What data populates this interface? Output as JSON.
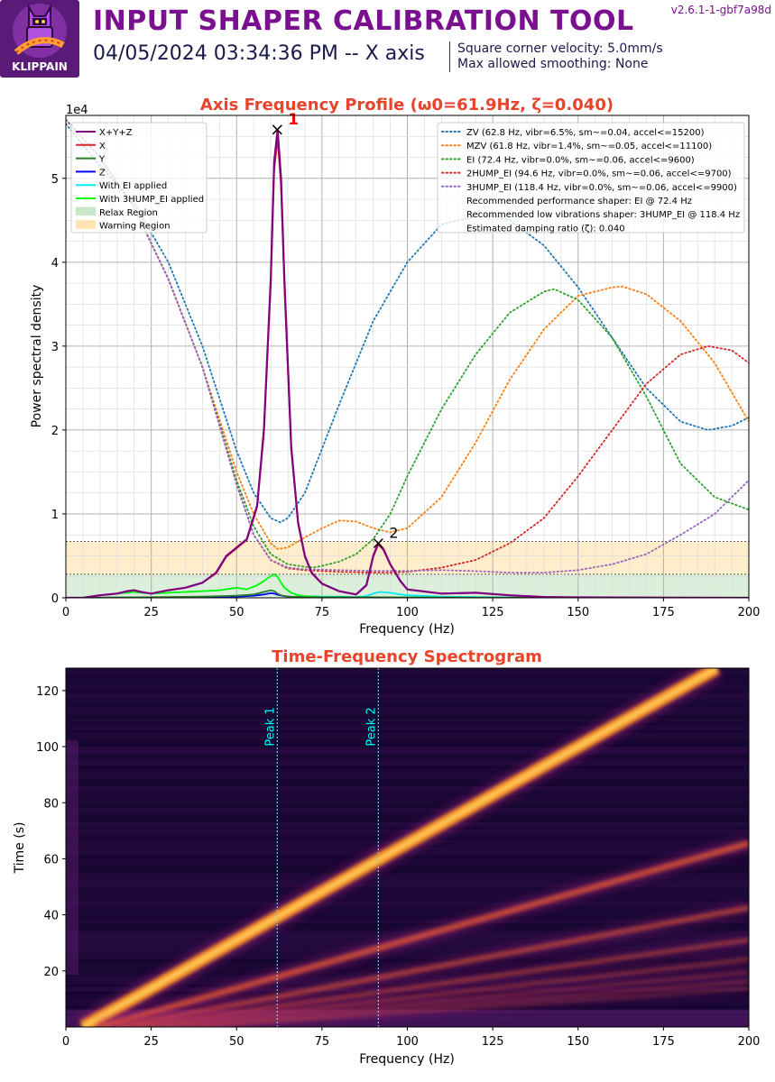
{
  "header": {
    "title": "INPUT SHAPER CALIBRATION TOOL",
    "subtitle": "04/05/2024 03:34:36 PM -- X axis",
    "params": [
      "Square corner velocity: 5.0mm/s",
      "Max allowed smoothing: None"
    ],
    "version": "v2.6.1-1-gbf7a98d",
    "logo_text": "KLIPPAIN"
  },
  "colors": {
    "title": "#7a0f8f",
    "plot_title": "#e8442b",
    "xyz": "#800080",
    "x": "#d62728",
    "y": "#2a7d2a",
    "z": "#0000ff",
    "with_ei": "#00eeee",
    "with_3hump": "#00ff00",
    "zv": "#1f77b4",
    "mzv": "#ff7f0e",
    "ei": "#2ca02c",
    "two_hump": "#d62728",
    "three_hump": "#9467bd"
  },
  "chart_data": [
    {
      "type": "line",
      "title": "Axis Frequency Profile (ω0=61.9Hz, ζ=0.040)",
      "xlabel": "Frequency (Hz)",
      "ylabel": "Power spectral density",
      "y_exponent_label": "1e4",
      "xlim": [
        0,
        200
      ],
      "ylim": [
        0,
        57500
      ],
      "x_ticks": [
        0,
        25,
        50,
        75,
        100,
        125,
        150,
        175,
        200
      ],
      "y_ticks": [
        0,
        10000,
        20000,
        30000,
        40000,
        50000
      ],
      "y_tick_labels": [
        "0",
        "1",
        "2",
        "3",
        "4",
        "5"
      ],
      "grid": true,
      "legend_left": [
        "X+Y+Z",
        "X",
        "Y",
        "Z",
        "With EI applied",
        "With 3HUMP_EI applied",
        "Relax Region",
        "Warning Region"
      ],
      "legend_right": [
        "ZV (62.8 Hz, vibr=6.5%, sm~=0.04, accel<=15200)",
        "MZV (61.8 Hz, vibr=1.4%, sm~=0.05, accel<=11100)",
        "EI (72.4 Hz, vibr=0.0%, sm~=0.06, accel<=9600)",
        "2HUMP_EI (94.6 Hz, vibr=0.0%, sm~=0.06, accel<=9700)",
        "3HUMP_EI (118.4 Hz, vibr=0.0%, sm~=0.06, accel<=9900)",
        "Recommended performance shaper: EI @ 72.4 Hz",
        "Recommended low vibrations shaper: 3HUMP_EI @ 118.4 Hz",
        "Estimated damping ratio (ζ): 0.040"
      ],
      "regions": {
        "relax": [
          0,
          2800
        ],
        "warning": [
          2800,
          6700
        ]
      },
      "peaks": [
        {
          "label": "1",
          "x": 61.9,
          "y": 55800
        },
        {
          "label": "2",
          "x": 91.5,
          "y": 6500
        }
      ],
      "series": [
        {
          "name": "X+Y+Z",
          "key": "xyz",
          "x": [
            0,
            5,
            10,
            15,
            18,
            20,
            22,
            25,
            30,
            35,
            40,
            44,
            47,
            50,
            53,
            56,
            58,
            60,
            61,
            62,
            63,
            64,
            66,
            68,
            70,
            72,
            75,
            80,
            85,
            88,
            90,
            91.5,
            93,
            95,
            98,
            100,
            110,
            120,
            130,
            140,
            150,
            175,
            200
          ],
          "y": [
            0,
            0,
            300,
            500,
            800,
            900,
            700,
            500,
            900,
            1200,
            1800,
            3000,
            5000,
            6000,
            7000,
            11000,
            20000,
            38000,
            52000,
            55800,
            50000,
            38000,
            18000,
            9000,
            5000,
            3000,
            1700,
            800,
            400,
            1500,
            5000,
            6500,
            5800,
            4000,
            2000,
            1000,
            500,
            600,
            300,
            100,
            50,
            20,
            0
          ]
        },
        {
          "name": "X",
          "key": "x",
          "x": [
            0,
            5,
            10,
            15,
            18,
            20,
            22,
            25,
            30,
            35,
            40,
            44,
            47,
            50,
            53,
            56,
            58,
            60,
            61,
            62,
            63,
            64,
            66,
            68,
            70,
            72,
            75,
            80,
            85,
            88,
            90,
            91.5,
            93,
            95,
            98,
            100,
            110,
            120,
            130,
            140,
            150,
            175,
            200
          ],
          "y": [
            0,
            0,
            300,
            500,
            800,
            900,
            700,
            500,
            900,
            1200,
            1800,
            2900,
            4900,
            5900,
            6900,
            10800,
            19600,
            37300,
            51000,
            54700,
            49000,
            37200,
            17600,
            8800,
            4900,
            2900,
            1650,
            780,
            390,
            1450,
            4900,
            6350,
            5700,
            3950,
            1950,
            980,
            490,
            590,
            290,
            100,
            50,
            20,
            0
          ]
        },
        {
          "name": "Y",
          "key": "y",
          "x": [
            0,
            20,
            40,
            50,
            55,
            58,
            60,
            61,
            62,
            63,
            65,
            70,
            80,
            100,
            130,
            200
          ],
          "y": [
            0,
            50,
            150,
            250,
            400,
            700,
            900,
            800,
            500,
            300,
            150,
            80,
            60,
            40,
            20,
            0
          ]
        },
        {
          "name": "Z",
          "key": "z",
          "x": [
            0,
            20,
            40,
            50,
            55,
            58,
            60,
            61,
            62,
            64,
            66,
            70,
            80,
            100,
            130,
            200
          ],
          "y": [
            0,
            30,
            80,
            150,
            250,
            400,
            550,
            500,
            350,
            200,
            120,
            60,
            40,
            20,
            10,
            0
          ]
        },
        {
          "name": "With EI applied",
          "key": "with_ei",
          "x": [
            0,
            5,
            10,
            15,
            20,
            25,
            30,
            35,
            40,
            45,
            50,
            53,
            56,
            58,
            60,
            61,
            62,
            63,
            64,
            66,
            68,
            70,
            75,
            80,
            85,
            88,
            90,
            92,
            95,
            98,
            100,
            110,
            120,
            130,
            140,
            150,
            175,
            200
          ],
          "y": [
            0,
            0,
            300,
            500,
            700,
            500,
            600,
            700,
            800,
            900,
            1200,
            1000,
            1500,
            2000,
            2600,
            2800,
            2500,
            1800,
            1200,
            600,
            300,
            200,
            150,
            150,
            100,
            200,
            500,
            700,
            600,
            400,
            300,
            150,
            100,
            50,
            20,
            10,
            0,
            0
          ]
        },
        {
          "name": "With 3HUMP_EI applied",
          "key": "with_3hump",
          "x": [
            0,
            5,
            10,
            15,
            20,
            25,
            30,
            35,
            40,
            45,
            50,
            53,
            56,
            58,
            60,
            61,
            62,
            63,
            64,
            66,
            68,
            70,
            75,
            80,
            85,
            90,
            95,
            100,
            110,
            120,
            130,
            140,
            150,
            175,
            200
          ],
          "y": [
            0,
            0,
            300,
            500,
            700,
            500,
            600,
            700,
            800,
            900,
            1200,
            1000,
            1500,
            2000,
            2600,
            2800,
            2500,
            1800,
            1200,
            600,
            300,
            200,
            100,
            80,
            60,
            80,
            60,
            40,
            20,
            10,
            5,
            0,
            0,
            0,
            0
          ]
        },
        {
          "name": "ZV (62.8 Hz, vibr=6.5%, sm~=0.04, accel<=15200)",
          "key": "zv",
          "x": [
            0,
            10,
            20,
            30,
            40,
            50,
            55,
            60,
            62.8,
            65,
            70,
            80,
            90,
            100,
            110,
            120,
            125,
            130,
            140,
            150,
            160,
            170,
            180,
            188,
            195,
            200
          ],
          "y": [
            56500,
            51500,
            47000,
            40000,
            30000,
            17500,
            12500,
            9500,
            9000,
            9500,
            12500,
            23000,
            33000,
            40000,
            44500,
            45500,
            45500,
            45000,
            42000,
            37000,
            31000,
            25000,
            21000,
            20000,
            20500,
            21500
          ]
        },
        {
          "name": "MZV (61.8 Hz, vibr=1.4%, sm~=0.05, accel<=11100)",
          "key": "mzv",
          "x": [
            0,
            10,
            20,
            30,
            40,
            50,
            55,
            60,
            62,
            65,
            70,
            75,
            80,
            85,
            90,
            95,
            100,
            110,
            120,
            130,
            140,
            150,
            160,
            163,
            170,
            180,
            190,
            200
          ],
          "y": [
            57000,
            52500,
            46500,
            38000,
            27500,
            15000,
            10000,
            6500,
            5800,
            6000,
            7200,
            8300,
            9200,
            9100,
            8300,
            7800,
            8300,
            12000,
            18500,
            26000,
            32000,
            36000,
            37000,
            37100,
            36200,
            33000,
            28000,
            21000
          ]
        },
        {
          "name": "EI (72.4 Hz, vibr=0.0%, sm~=0.06, accel<=9600)",
          "key": "ei",
          "x": [
            0,
            10,
            20,
            30,
            40,
            50,
            55,
            60,
            65,
            70,
            72.4,
            75,
            80,
            85,
            90,
            95,
            100,
            110,
            120,
            130,
            140,
            143,
            150,
            160,
            170,
            180,
            190,
            200
          ],
          "y": [
            57000,
            52500,
            46500,
            38000,
            27500,
            14000,
            8500,
            5200,
            4000,
            3700,
            3600,
            3800,
            4300,
            5200,
            7000,
            10000,
            14500,
            22500,
            29000,
            34000,
            36500,
            36800,
            35500,
            31000,
            24000,
            16000,
            12000,
            10500
          ]
        },
        {
          "name": "2HUMP_EI (94.6 Hz, vibr=0.0%, sm~=0.06, accel<=9700)",
          "key": "two_hump",
          "x": [
            0,
            10,
            20,
            30,
            40,
            50,
            55,
            60,
            65,
            70,
            80,
            90,
            94.6,
            100,
            110,
            120,
            130,
            140,
            150,
            160,
            170,
            180,
            188,
            195,
            200
          ],
          "y": [
            57000,
            52500,
            46500,
            38000,
            27500,
            13500,
            7500,
            4500,
            3500,
            3300,
            3100,
            3000,
            3000,
            3100,
            3600,
            4500,
            6500,
            9500,
            14500,
            20000,
            25500,
            29000,
            30000,
            29500,
            28000
          ]
        },
        {
          "name": "3HUMP_EI (118.4 Hz, vibr=0.0%, sm~=0.06, accel<=9900)",
          "key": "three_hump",
          "x": [
            0,
            10,
            20,
            30,
            40,
            50,
            55,
            60,
            65,
            70,
            80,
            90,
            100,
            110,
            118.4,
            125,
            130,
            140,
            150,
            160,
            170,
            180,
            190,
            200
          ],
          "y": [
            57000,
            52500,
            46500,
            38000,
            27500,
            13500,
            7500,
            4500,
            3600,
            3400,
            3300,
            3200,
            3200,
            3300,
            3200,
            3100,
            3000,
            3000,
            3300,
            4000,
            5200,
            7500,
            10000,
            14000
          ]
        }
      ]
    },
    {
      "type": "heatmap",
      "title": "Time-Frequency Spectrogram",
      "xlabel": "Frequency (Hz)",
      "ylabel": "Time (s)",
      "xlim": [
        0,
        200
      ],
      "ylim": [
        0,
        128
      ],
      "x_ticks": [
        0,
        25,
        50,
        75,
        100,
        125,
        150,
        175,
        200
      ],
      "y_ticks": [
        20,
        40,
        60,
        80,
        100,
        120
      ],
      "peak_lines": [
        {
          "label": "Peak 1",
          "x": 61.9
        },
        {
          "label": "Peak 2",
          "x": 91.5
        }
      ],
      "harmonic_ridges": [
        {
          "order": 1,
          "intensity": 1.0
        },
        {
          "order": 2,
          "intensity": 0.75
        },
        {
          "order": 3,
          "intensity": 0.55
        },
        {
          "order": 4,
          "intensity": 0.45
        },
        {
          "order": 5,
          "intensity": 0.4
        },
        {
          "order": 6,
          "intensity": 0.35
        },
        {
          "order": 7,
          "intensity": 0.3
        },
        {
          "order": 8,
          "intensity": 0.26
        }
      ],
      "sweep_hz_per_s": 1.45,
      "sweep_start_hz": 5
    }
  ]
}
